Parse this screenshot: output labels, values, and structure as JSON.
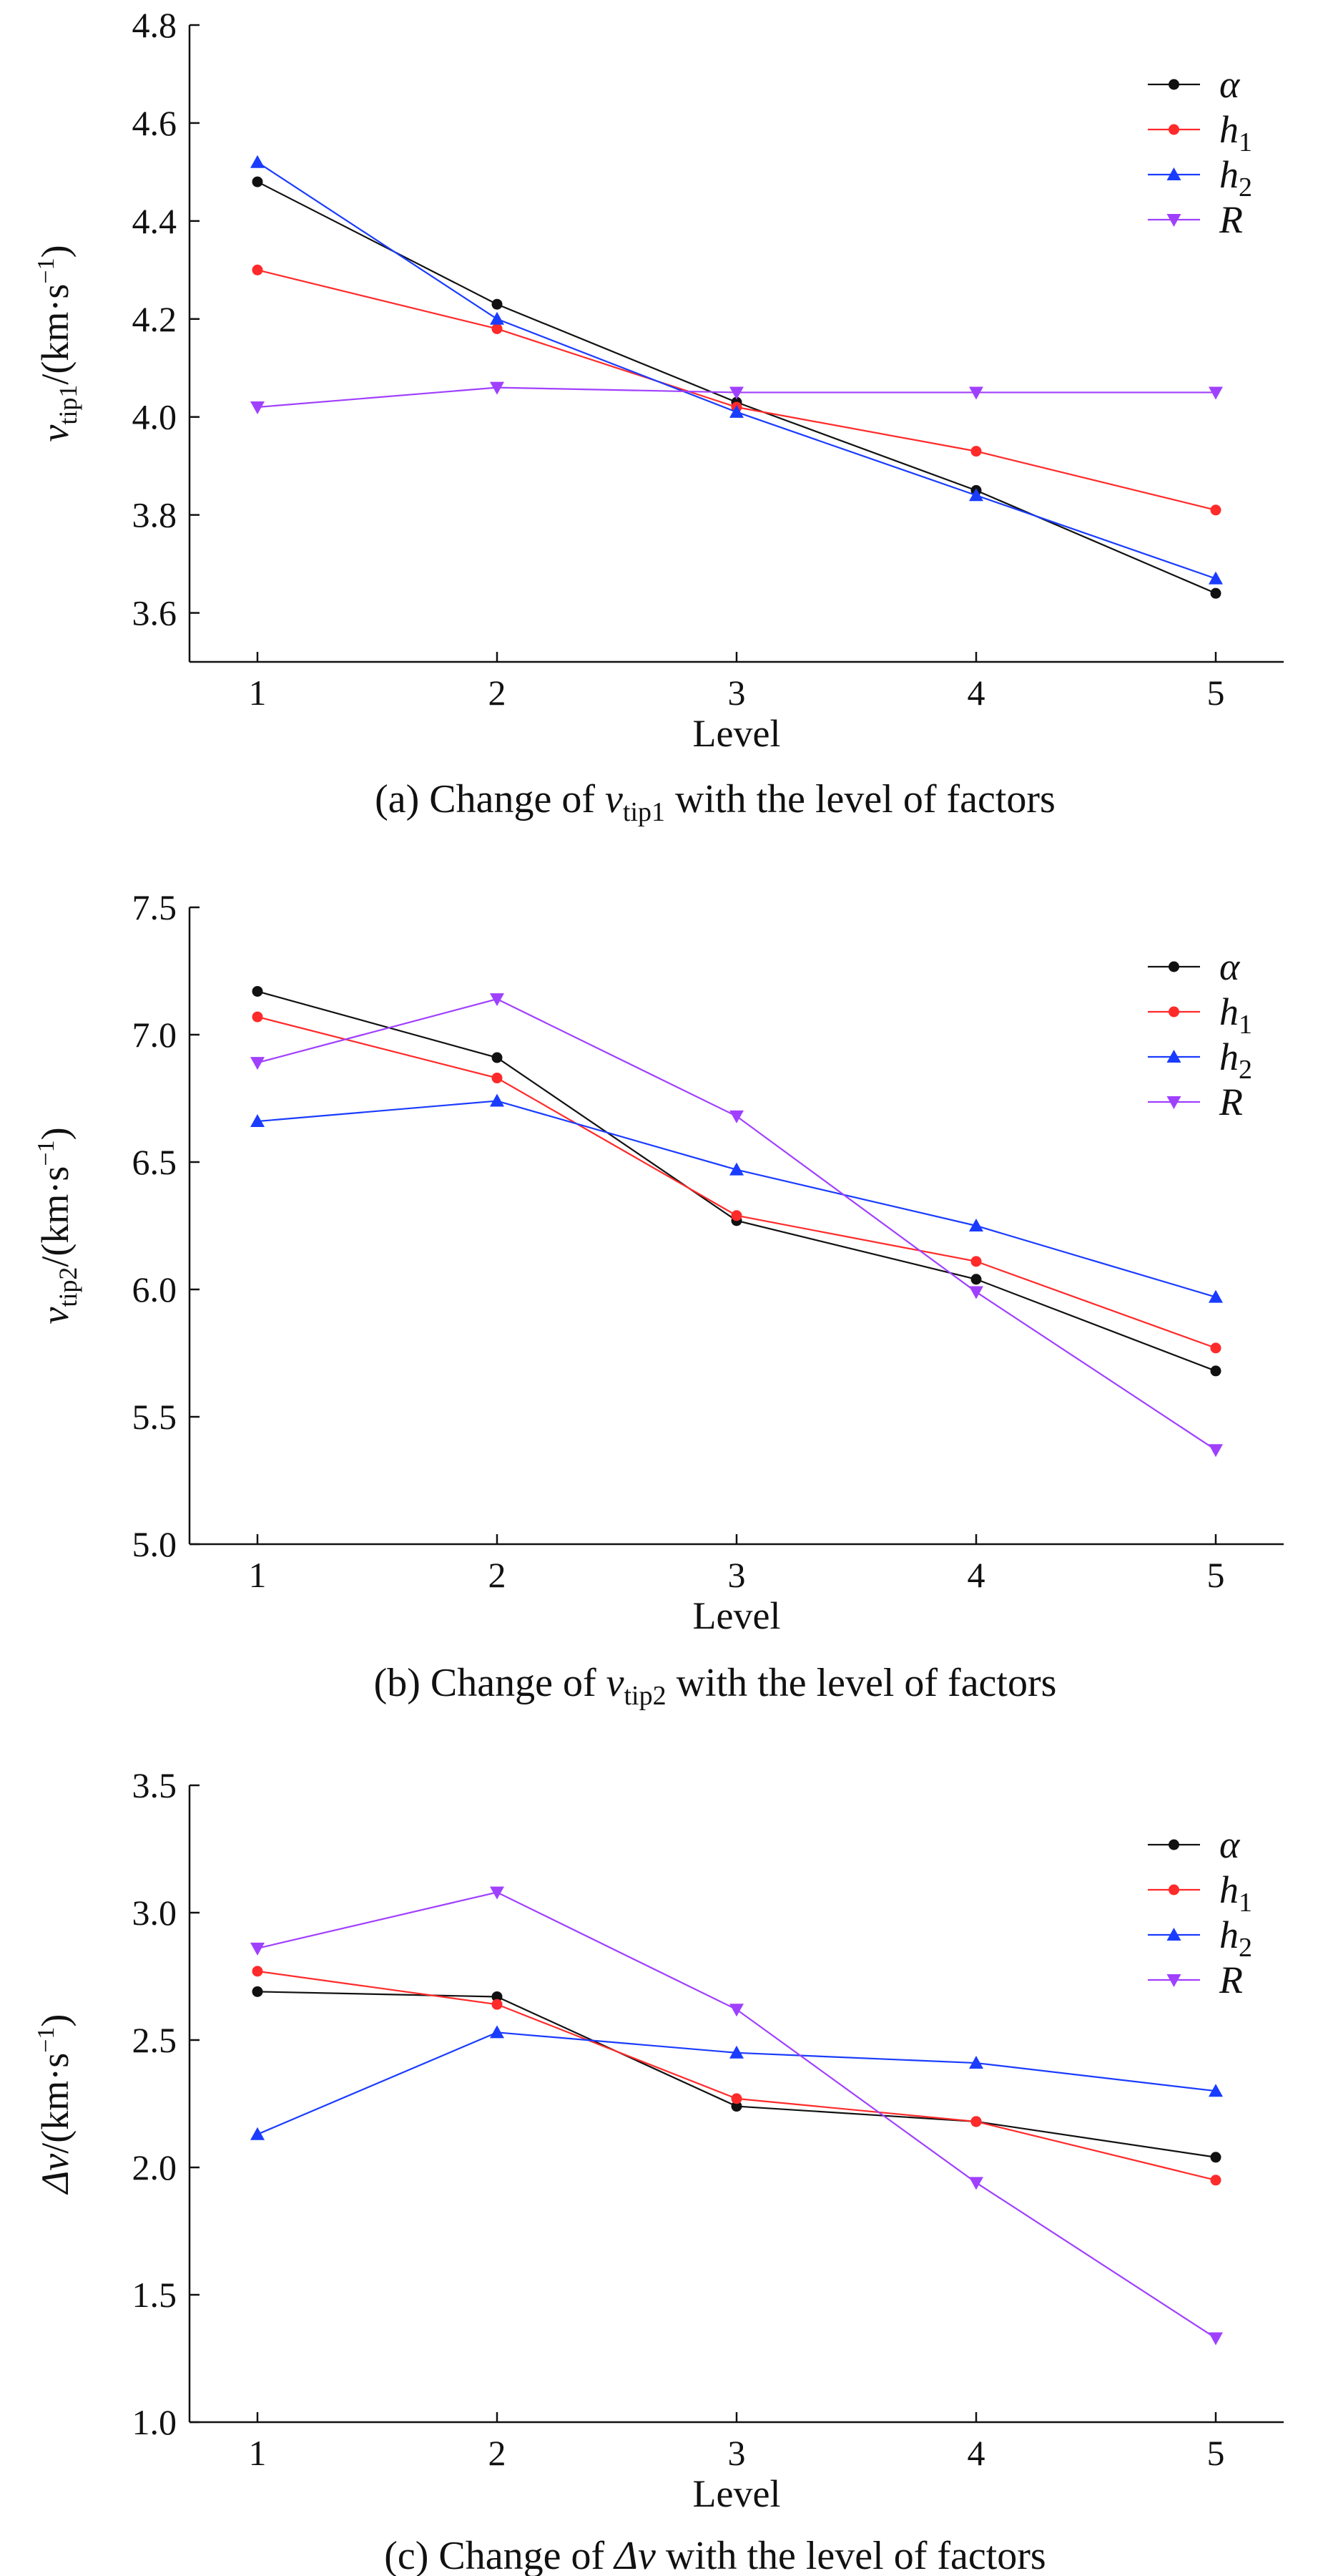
{
  "figure": {
    "xlabel": "Level",
    "legend_labels": {
      "alpha": "α",
      "h1": "h",
      "h1_sub": "1",
      "h2": "h",
      "h2_sub": "2",
      "R": "R"
    },
    "series_colors": {
      "alpha": "#111111",
      "h1": "#ff2a2a",
      "h2": "#1a3cff",
      "R": "#a040ff"
    },
    "series_markers": {
      "alpha": "circle",
      "h1": "circle",
      "h2": "triangle-up",
      "R": "triangle-down"
    }
  },
  "chart_data": [
    {
      "type": "line",
      "ylabel": {
        "main": "v",
        "sub": "tip1",
        "unit": "/(km·s",
        "sup": "−1",
        "close": ")"
      },
      "caption": {
        "pre": "(a) Change of ",
        "var": "v",
        "sub": "tip1",
        "post": " with the level of factors"
      },
      "xlabel": "Level",
      "x": [
        1,
        2,
        3,
        4,
        5
      ],
      "xticks": [
        "1",
        "2",
        "3",
        "4",
        "5"
      ],
      "ylim": [
        3.5,
        4.8
      ],
      "yticks": [
        "3.6",
        "3.8",
        "4.0",
        "4.2",
        "4.4",
        "4.6",
        "4.8"
      ],
      "ytick_values": [
        3.6,
        3.8,
        4.0,
        4.2,
        4.4,
        4.6,
        4.8
      ],
      "legend": "top-right",
      "series": [
        {
          "key": "alpha",
          "name": "α",
          "values": [
            4.48,
            4.23,
            4.03,
            3.85,
            3.64
          ]
        },
        {
          "key": "h1",
          "name": "h1",
          "values": [
            4.3,
            4.18,
            4.02,
            3.93,
            3.81
          ]
        },
        {
          "key": "h2",
          "name": "h2",
          "values": [
            4.52,
            4.2,
            4.01,
            3.84,
            3.67
          ]
        },
        {
          "key": "R",
          "name": "R",
          "values": [
            4.02,
            4.06,
            4.05,
            4.05,
            4.05
          ]
        }
      ]
    },
    {
      "type": "line",
      "ylabel": {
        "main": "v",
        "sub": "tip2",
        "unit": "/(km·s",
        "sup": "−1",
        "close": ")"
      },
      "caption": {
        "pre": "(b) Change of ",
        "var": "v",
        "sub": "tip2",
        "post": " with the level of factors"
      },
      "xlabel": "Level",
      "x": [
        1,
        2,
        3,
        4,
        5
      ],
      "xticks": [
        "1",
        "2",
        "3",
        "4",
        "5"
      ],
      "ylim": [
        5.0,
        7.5
      ],
      "yticks": [
        "5.0",
        "5.5",
        "6.0",
        "6.5",
        "7.0",
        "7.5"
      ],
      "ytick_values": [
        5.0,
        5.5,
        6.0,
        6.5,
        7.0,
        7.5
      ],
      "legend": "top-right",
      "series": [
        {
          "key": "alpha",
          "name": "α",
          "values": [
            7.17,
            6.91,
            6.27,
            6.04,
            5.68
          ]
        },
        {
          "key": "h1",
          "name": "h1",
          "values": [
            7.07,
            6.83,
            6.29,
            6.11,
            5.77
          ]
        },
        {
          "key": "h2",
          "name": "h2",
          "values": [
            6.66,
            6.74,
            6.47,
            6.25,
            5.97
          ]
        },
        {
          "key": "R",
          "name": "R",
          "values": [
            6.89,
            7.14,
            6.68,
            5.99,
            5.37
          ]
        }
      ]
    },
    {
      "type": "line",
      "ylabel": {
        "main": "Δv",
        "sub": "",
        "unit": "/(km·s",
        "sup": "−1",
        "close": ")"
      },
      "caption": {
        "pre": "(c) Change of ",
        "var": "Δv",
        "sub": "",
        "post": " with the level of factors"
      },
      "xlabel": "Level",
      "x": [
        1,
        2,
        3,
        4,
        5
      ],
      "xticks": [
        "1",
        "2",
        "3",
        "4",
        "5"
      ],
      "ylim": [
        1.0,
        3.5
      ],
      "yticks": [
        "1.0",
        "1.5",
        "2.0",
        "2.5",
        "3.0",
        "3.5"
      ],
      "ytick_values": [
        1.0,
        1.5,
        2.0,
        2.5,
        3.0,
        3.5
      ],
      "legend": "top-right",
      "series": [
        {
          "key": "alpha",
          "name": "α",
          "values": [
            2.69,
            2.67,
            2.24,
            2.18,
            2.04
          ]
        },
        {
          "key": "h1",
          "name": "h1",
          "values": [
            2.77,
            2.64,
            2.27,
            2.18,
            1.95
          ]
        },
        {
          "key": "h2",
          "name": "h2",
          "values": [
            2.13,
            2.53,
            2.45,
            2.41,
            2.3
          ]
        },
        {
          "key": "R",
          "name": "R",
          "values": [
            2.86,
            3.08,
            2.62,
            1.94,
            1.33
          ]
        }
      ]
    }
  ]
}
